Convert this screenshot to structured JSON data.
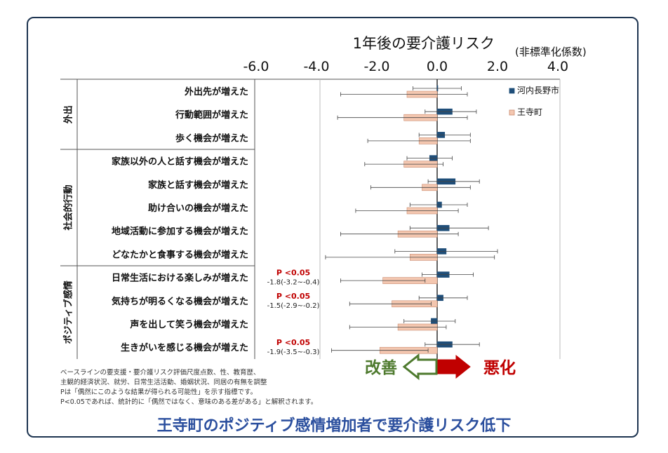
{
  "chart_data": {
    "type": "forest",
    "title": "1年後の要介護リスク",
    "title_unit": "(非標準化係数)",
    "x_ticks": [
      "-6.0",
      "-4.0",
      "-2.0",
      "0.0",
      "2.0",
      "4.0"
    ],
    "x_tick_values": [
      -6,
      -4,
      -2,
      0,
      2,
      4
    ],
    "xlim": [
      -6,
      4
    ],
    "legend": [
      {
        "name": "河内長野市",
        "color": "#1f4e79"
      },
      {
        "name": "王寺町",
        "color": "#f4c7b0"
      }
    ],
    "groups": [
      {
        "label": "外出",
        "rows": [
          0,
          1,
          2
        ]
      },
      {
        "label": "社会的行動",
        "rows": [
          3,
          4,
          5,
          6,
          7
        ]
      },
      {
        "label": "ポジティブ感情",
        "rows": [
          8,
          9,
          10,
          11
        ]
      }
    ],
    "rows": [
      {
        "label": "外出先が増えた",
        "series": [
          {
            "value": 0.0,
            "lo": -0.8,
            "hi": 0.8
          },
          {
            "value": -1.0,
            "lo": -3.2,
            "hi": 1.0
          }
        ]
      },
      {
        "label": "行動範囲が増えた",
        "series": [
          {
            "value": 0.5,
            "lo": -0.4,
            "hi": 1.3
          },
          {
            "value": -1.1,
            "lo": -3.3,
            "hi": 1.0
          }
        ]
      },
      {
        "label": "歩く機会が増えた",
        "series": [
          {
            "value": 0.25,
            "lo": -0.6,
            "hi": 1.1
          },
          {
            "value": -0.6,
            "lo": -2.3,
            "hi": 1.1
          }
        ]
      },
      {
        "label": "家族以外の人と話す機会が増えた",
        "series": [
          {
            "value": -0.25,
            "lo": -1.0,
            "hi": 0.5
          },
          {
            "value": -1.1,
            "lo": -2.4,
            "hi": 0.2
          }
        ]
      },
      {
        "label": "家族と話す機会が増えた",
        "series": [
          {
            "value": 0.6,
            "lo": -0.3,
            "hi": 1.4
          },
          {
            "value": -0.5,
            "lo": -2.2,
            "hi": 1.1
          }
        ]
      },
      {
        "label": "助け合いの機会が増えた",
        "series": [
          {
            "value": 0.15,
            "lo": -0.9,
            "hi": 1.0
          },
          {
            "value": -1.0,
            "lo": -2.7,
            "hi": 0.7
          }
        ]
      },
      {
        "label": "地域活動に参加する機会が増えた",
        "series": [
          {
            "value": 0.4,
            "lo": -0.9,
            "hi": 1.7
          },
          {
            "value": -1.3,
            "lo": -3.2,
            "hi": 0.7
          }
        ]
      },
      {
        "label": "どなたかと食事する機会が増えた",
        "series": [
          {
            "value": 0.3,
            "lo": -1.4,
            "hi": 2.0
          },
          {
            "value": -0.9,
            "lo": -3.7,
            "hi": 1.9
          }
        ]
      },
      {
        "label": "日常生活における楽しみが増えた",
        "series": [
          {
            "value": 0.4,
            "lo": -0.5,
            "hi": 1.2
          },
          {
            "value": -1.8,
            "lo": -3.2,
            "hi": -0.4
          }
        ],
        "annotation": {
          "p": "P <0.05",
          "ci": "-1.8(-3.2~-0.4)"
        }
      },
      {
        "label": "気持ちが明るくなる機会が増えた",
        "series": [
          {
            "value": 0.2,
            "lo": -0.6,
            "hi": 1.0
          },
          {
            "value": -1.5,
            "lo": -2.9,
            "hi": -0.2
          }
        ],
        "annotation": {
          "p": "P <0.05",
          "ci": "-1.5(-2.9~-0.2)"
        }
      },
      {
        "label": "声を出して笑う機会が増えた",
        "series": [
          {
            "value": -0.2,
            "lo": -1.1,
            "hi": 0.6
          },
          {
            "value": -1.3,
            "lo": -2.9,
            "hi": 0.3
          }
        ]
      },
      {
        "label": "生きがいを感じる機会が増えた",
        "series": [
          {
            "value": 0.5,
            "lo": -0.4,
            "hi": 1.4
          },
          {
            "value": -1.9,
            "lo": -3.5,
            "hi": -0.3
          }
        ],
        "annotation": {
          "p": "P <0.05",
          "ci": "-1.9(-3.5~-0.3)"
        }
      }
    ]
  },
  "arrows": {
    "improve": "改善",
    "worsen": "悪化",
    "improve_color": "#4e7a2e",
    "worsen_color": "#c00000"
  },
  "notes": [
    "ベースラインの要支援・要介護リスク評価尺度点数、性、教育歴、",
    "主観的経済状況、就労、日常生活活動、婚姻状況、同居の有無を調整",
    "Pは「偶然にこのような結果が得られる可能性」を示す指標です。",
    "P<0.05であれば、統計的に「偶然ではなく、意味のある差がある」と解釈されます。"
  ],
  "headline": "王寺町のポジティブ感情増加者で要介護リスク低下"
}
